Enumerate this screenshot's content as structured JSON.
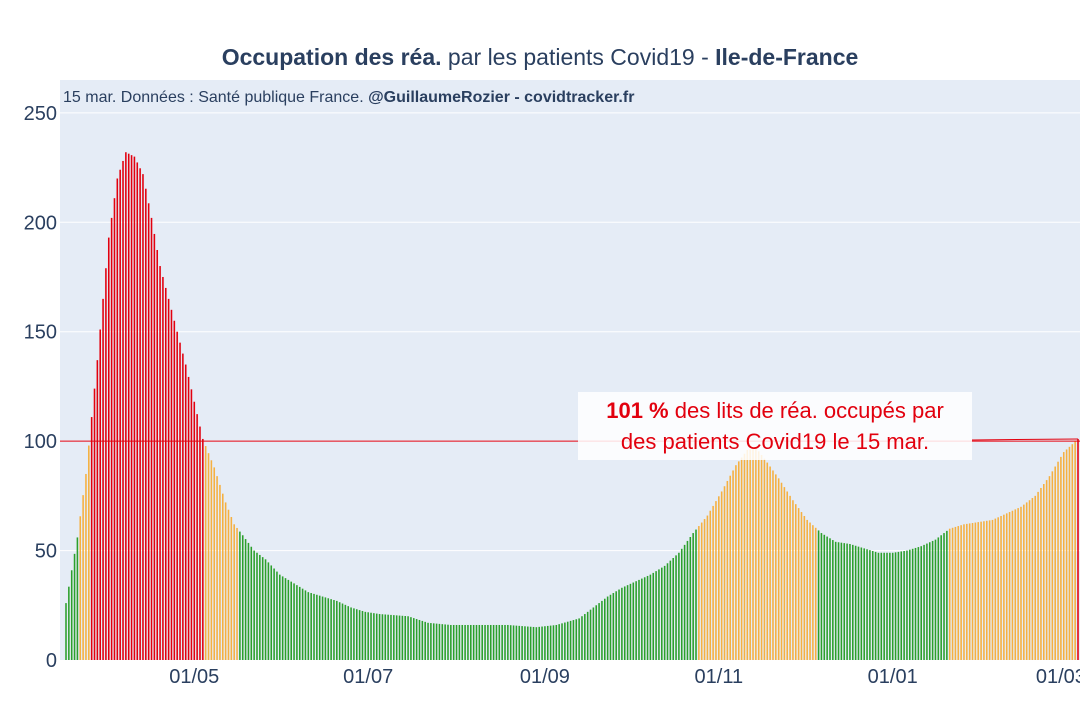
{
  "chart_data": {
    "type": "bar",
    "title": {
      "bold1": "Occupation des réa.",
      "plain": " par les patients Covid19 - ",
      "bold2": "Ile-de-France"
    },
    "subtitle": {
      "plain": "15 mar. Données : Santé publique France. ",
      "bold": "@GuillaumeRozier - covidtracker.fr"
    },
    "unit": "%",
    "ylim": [
      0,
      265
    ],
    "yticks": [
      0,
      50,
      100,
      150,
      200,
      250
    ],
    "xticks": [
      {
        "label": "01/05",
        "day": 45
      },
      {
        "label": "01/07",
        "day": 106
      },
      {
        "label": "01/09",
        "day": 168
      },
      {
        "label": "01/11",
        "day": 229
      },
      {
        "label": "01/01",
        "day": 290
      },
      {
        "label": "01/03",
        "day": 349
      }
    ],
    "reference_line": 100,
    "annotation": {
      "value": "101",
      "unit": " %",
      "line1": " des lits de réa. occupés par",
      "line2": "des patients Covid19 le 15 mar."
    },
    "last_value": 101,
    "color_thresholds": {
      "green_below": 60,
      "orange_below": 100
    },
    "colors": {
      "green": "#2ca02c",
      "orange": "#f5b041",
      "red": "#e2000e",
      "plot_bg": "#e5ecf6",
      "grid": "#ffffff",
      "text": "#2a3f5f"
    },
    "series_keypoints": [
      [
        0,
        26
      ],
      [
        4,
        56
      ],
      [
        7,
        85
      ],
      [
        11,
        137
      ],
      [
        15,
        193
      ],
      [
        18,
        220
      ],
      [
        21,
        232
      ],
      [
        24,
        230
      ],
      [
        27,
        222
      ],
      [
        30,
        202
      ],
      [
        33,
        180
      ],
      [
        36,
        165
      ],
      [
        39,
        150
      ],
      [
        42,
        135
      ],
      [
        45,
        118
      ],
      [
        48,
        101
      ],
      [
        52,
        88
      ],
      [
        56,
        72
      ],
      [
        59,
        62
      ],
      [
        62,
        57
      ],
      [
        66,
        50
      ],
      [
        70,
        46
      ],
      [
        75,
        39
      ],
      [
        80,
        35
      ],
      [
        85,
        31
      ],
      [
        90,
        29
      ],
      [
        95,
        27
      ],
      [
        100,
        24
      ],
      [
        105,
        22
      ],
      [
        110,
        21
      ],
      [
        120,
        20
      ],
      [
        127,
        17
      ],
      [
        135,
        16
      ],
      [
        145,
        16
      ],
      [
        155,
        16
      ],
      [
        165,
        15
      ],
      [
        172,
        16
      ],
      [
        180,
        19
      ],
      [
        185,
        24
      ],
      [
        190,
        29
      ],
      [
        195,
        33
      ],
      [
        200,
        36
      ],
      [
        205,
        39
      ],
      [
        210,
        43
      ],
      [
        215,
        49
      ],
      [
        220,
        58
      ],
      [
        225,
        66
      ],
      [
        230,
        77
      ],
      [
        235,
        89
      ],
      [
        239,
        96
      ],
      [
        242,
        97
      ],
      [
        245,
        92
      ],
      [
        250,
        83
      ],
      [
        255,
        73
      ],
      [
        260,
        64
      ],
      [
        265,
        58
      ],
      [
        270,
        54
      ],
      [
        275,
        53
      ],
      [
        280,
        51
      ],
      [
        285,
        49
      ],
      [
        290,
        49
      ],
      [
        295,
        50
      ],
      [
        300,
        52
      ],
      [
        305,
        55
      ],
      [
        310,
        60
      ],
      [
        315,
        62
      ],
      [
        320,
        63
      ],
      [
        325,
        64
      ],
      [
        330,
        67
      ],
      [
        335,
        70
      ],
      [
        340,
        75
      ],
      [
        345,
        84
      ],
      [
        350,
        95
      ],
      [
        355,
        101
      ]
    ]
  }
}
